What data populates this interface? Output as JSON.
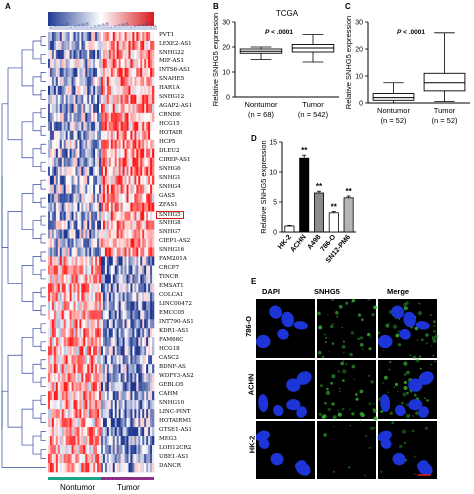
{
  "panel_labels": {
    "a": "A",
    "b": "B",
    "c": "C",
    "d": "D",
    "e": "E"
  },
  "heatmap": {
    "colors": {
      "high": "#d7191c",
      "low": "#1f3a93",
      "mid": "#ffffff",
      "nontumor_bar": "#1aa58a",
      "tumor_bar": "#8e2f86"
    },
    "genes": [
      "PVT1",
      "LEXE2-AS1",
      "SNHG22",
      "MIF-AS1",
      "INTS6-AS1",
      "SNAHE5",
      "HAR1A",
      "SNHG12",
      "AGAP2-AS1",
      "CRNDE",
      "HCG15",
      "HOTAIR",
      "HCP5",
      "DLEU2",
      "CIREP-AS1",
      "SNHG6",
      "SNHG1",
      "SNHG4",
      "GAS5",
      "ZFAS1",
      "SNHG5",
      "SNHG8",
      "SNHG7",
      "CIEP1-AS2",
      "SNHG16",
      "FAM201A",
      "CRCP7",
      "TINCR",
      "EMSAT1",
      "COLCA1",
      "LINC00472",
      "EMCC05",
      "INT790-AS1",
      "KDR1-AS1",
      "FAM66C",
      "HCG18",
      "CASC2",
      "BDNF-AS",
      "WDFY3-AS2",
      "GEBLO5",
      "CAHM",
      "SNHG10",
      "LINC-PINT",
      "HOTAIRM1",
      "GTSE1-AS1",
      "MEG3",
      "LOH12CR2",
      "UBE1-AS1",
      "DANCR"
    ],
    "highlighted_gene": "SNHG5",
    "group_labels": {
      "nontumor": "Nontumor",
      "tumor": "Tumor"
    }
  },
  "chart_data": [
    {
      "type": "box",
      "title": "TCGA",
      "ylabel": "Relative SNHG5 expression",
      "annotation": "P < .0001",
      "ylim": [
        0,
        30
      ],
      "yticks": [
        0,
        10,
        20,
        30
      ],
      "categories": [
        "Nontumor",
        "Tumor"
      ],
      "category_sublabels": [
        "(n = 68)",
        "(n = 542)"
      ],
      "boxes": [
        {
          "min": 15.0,
          "q1": 17.5,
          "median": 18.3,
          "q3": 19.2,
          "max": 20.0
        },
        {
          "min": 14.0,
          "q1": 18.0,
          "median": 19.6,
          "q3": 21.0,
          "max": 25.0
        }
      ]
    },
    {
      "type": "box",
      "title": "",
      "ylabel": "Relative SNHG5 expression",
      "annotation": "P < .0001",
      "ylim": [
        0,
        30
      ],
      "yticks": [
        0,
        10,
        20,
        30
      ],
      "categories": [
        "Nontumor",
        "Tumor"
      ],
      "category_sublabels": [
        "(n = 52)",
        "(n = 52)"
      ],
      "boxes": [
        {
          "min": 0.0,
          "q1": 1.0,
          "median": 2.0,
          "q3": 3.5,
          "max": 7.5
        },
        {
          "min": 0.5,
          "q1": 4.5,
          "median": 7.5,
          "q3": 11.0,
          "max": 26.0
        }
      ]
    },
    {
      "type": "bar",
      "title": "",
      "ylabel": "Relative SNHG5 expression",
      "ylim": [
        0,
        15
      ],
      "yticks": [
        0,
        5,
        10,
        15
      ],
      "categories": [
        "HK-2",
        "ACHN",
        "A498",
        "786-O",
        "SN12-PM6"
      ],
      "values": [
        1.0,
        12.3,
        6.5,
        3.2,
        5.7
      ],
      "errors": [
        0.1,
        0.5,
        0.3,
        0.2,
        0.3
      ],
      "significance": [
        "",
        "**",
        "**",
        "**",
        "**"
      ]
    }
  ],
  "microscopy": {
    "column_labels": [
      "DAPI",
      "SNHG5",
      "Merge"
    ],
    "row_labels": [
      "786-O",
      "ACHN",
      "HK-2"
    ]
  }
}
